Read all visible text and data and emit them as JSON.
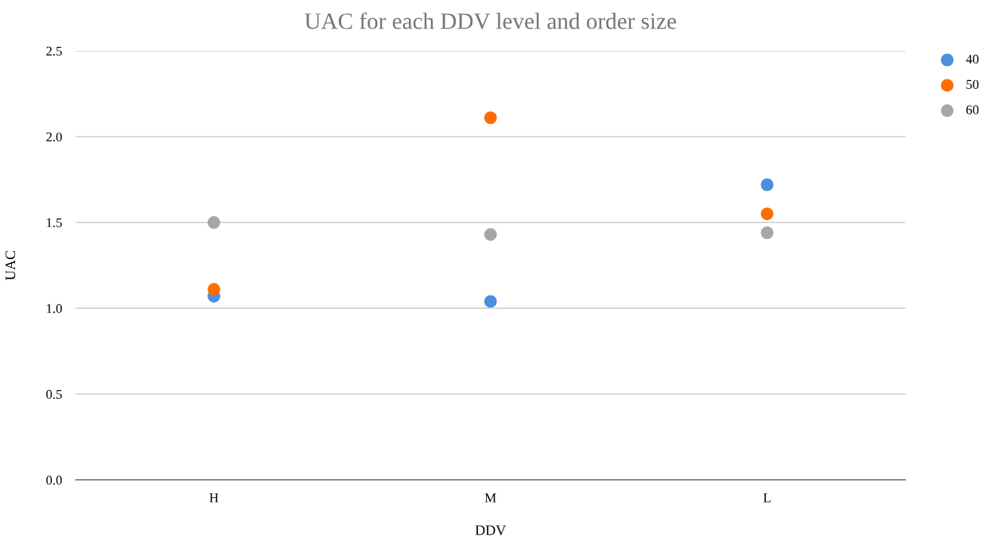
{
  "chart_data": {
    "type": "scatter",
    "title": "UAC for each DDV level and order size",
    "xlabel": "DDV",
    "ylabel": "UAC",
    "categories": [
      "H",
      "M",
      "L"
    ],
    "series": [
      {
        "name": "40",
        "color": "#4a90dc",
        "values": [
          1.07,
          1.04,
          1.72
        ]
      },
      {
        "name": "50",
        "color": "#ff6d01",
        "values": [
          1.11,
          2.11,
          1.55
        ]
      },
      {
        "name": "60",
        "color": "#a6a6a6",
        "values": [
          1.5,
          1.43,
          1.44
        ]
      }
    ],
    "ylim": [
      0,
      2.5
    ],
    "yticks": [
      {
        "value": 0,
        "label": "0.0"
      },
      {
        "value": 0.5,
        "label": "0.5"
      },
      {
        "value": 1,
        "label": "1.0"
      },
      {
        "value": 1.5,
        "label": "1.5"
      },
      {
        "value": 2,
        "label": "2.0"
      },
      {
        "value": 2.5,
        "label": "2.5"
      }
    ],
    "grid": "y",
    "legend": "top right",
    "marker": "circle"
  }
}
